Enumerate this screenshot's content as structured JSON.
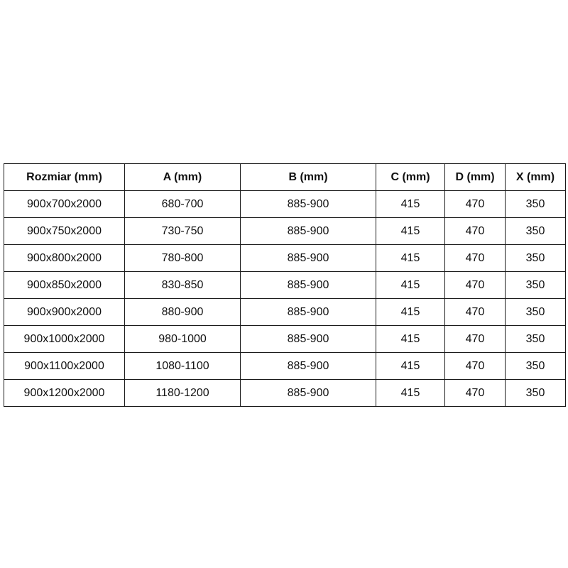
{
  "table": {
    "headers": [
      "Rozmiar (mm)",
      "A (mm)",
      "B (mm)",
      "C (mm)",
      "D (mm)",
      "X (mm)"
    ],
    "rows": [
      [
        "900x700x2000",
        "680-700",
        "885-900",
        "415",
        "470",
        "350"
      ],
      [
        "900x750x2000",
        "730-750",
        "885-900",
        "415",
        "470",
        "350"
      ],
      [
        "900x800x2000",
        "780-800",
        "885-900",
        "415",
        "470",
        "350"
      ],
      [
        "900x850x2000",
        "830-850",
        "885-900",
        "415",
        "470",
        "350"
      ],
      [
        "900x900x2000",
        "880-900",
        "885-900",
        "415",
        "470",
        "350"
      ],
      [
        "900x1000x2000",
        "980-1000",
        "885-900",
        "415",
        "470",
        "350"
      ],
      [
        "900x1100x2000",
        "1080-1100",
        "885-900",
        "415",
        "470",
        "350"
      ],
      [
        "900x1200x2000",
        "1180-1200",
        "885-900",
        "415",
        "470",
        "350"
      ]
    ]
  }
}
